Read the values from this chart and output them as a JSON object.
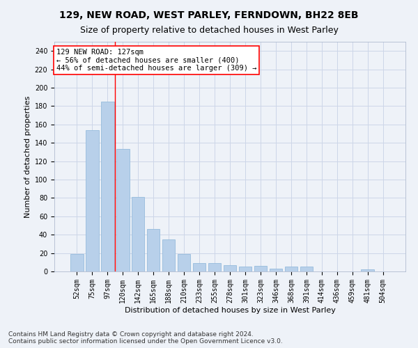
{
  "title1": "129, NEW ROAD, WEST PARLEY, FERNDOWN, BH22 8EB",
  "title2": "Size of property relative to detached houses in West Parley",
  "xlabel": "Distribution of detached houses by size in West Parley",
  "ylabel": "Number of detached properties",
  "categories": [
    "52sqm",
    "75sqm",
    "97sqm",
    "120sqm",
    "142sqm",
    "165sqm",
    "188sqm",
    "210sqm",
    "233sqm",
    "255sqm",
    "278sqm",
    "301sqm",
    "323sqm",
    "346sqm",
    "368sqm",
    "391sqm",
    "414sqm",
    "436sqm",
    "459sqm",
    "481sqm",
    "504sqm"
  ],
  "values": [
    19,
    154,
    185,
    133,
    81,
    46,
    35,
    19,
    9,
    9,
    7,
    5,
    6,
    3,
    5,
    5,
    0,
    0,
    0,
    2,
    0
  ],
  "bar_color": "#b8d0ea",
  "bar_edge_color": "#8ab4d8",
  "grid_color": "#ccd6e8",
  "background_color": "#eef2f8",
  "vline_x": 2.5,
  "vline_color": "red",
  "annotation_line1": "129 NEW ROAD: 127sqm",
  "annotation_line2": "← 56% of detached houses are smaller (400)",
  "annotation_line3": "44% of semi-detached houses are larger (309) →",
  "annotation_box_color": "white",
  "annotation_box_edge": "red",
  "ylim": [
    0,
    250
  ],
  "yticks": [
    0,
    20,
    40,
    60,
    80,
    100,
    120,
    140,
    160,
    180,
    200,
    220,
    240
  ],
  "footer1": "Contains HM Land Registry data © Crown copyright and database right 2024.",
  "footer2": "Contains public sector information licensed under the Open Government Licence v3.0.",
  "title_fontsize": 10,
  "subtitle_fontsize": 9,
  "axis_label_fontsize": 8,
  "tick_fontsize": 7,
  "annotation_fontsize": 7.5,
  "footer_fontsize": 6.5
}
